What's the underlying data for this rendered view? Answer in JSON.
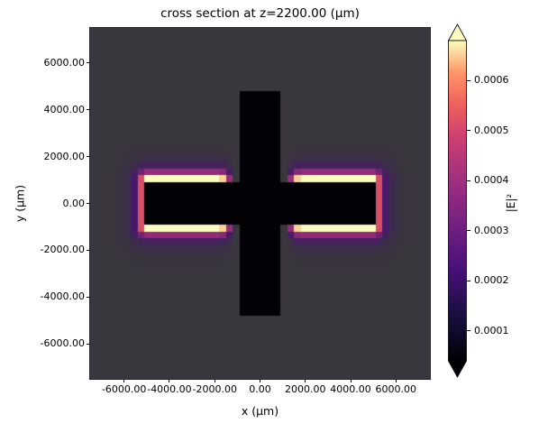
{
  "title": "cross section at z=2200.00 (μm)",
  "chart_data": {
    "type": "heatmap",
    "title": "cross section at z=2200.00 (μm)",
    "xlabel": "x (μm)",
    "ylabel": "y (μm)",
    "xlim": [
      -7500,
      7500
    ],
    "ylim": [
      -7500,
      7500
    ],
    "grid": false,
    "xticks": [
      {
        "v": -6000,
        "label": "-6000.00"
      },
      {
        "v": -4000,
        "label": "-4000.00"
      },
      {
        "v": -2000,
        "label": "-2000.00"
      },
      {
        "v": 0,
        "label": "0.00"
      },
      {
        "v": 2000,
        "label": "2000.00"
      },
      {
        "v": 4000,
        "label": "4000.00"
      },
      {
        "v": 6000,
        "label": "6000.00"
      }
    ],
    "yticks": [
      {
        "v": 6000,
        "label": "6000.00"
      },
      {
        "v": 4000,
        "label": "4000.00"
      },
      {
        "v": 2000,
        "label": "2000.00"
      },
      {
        "v": 0,
        "label": "0.00"
      },
      {
        "v": -2000,
        "label": "-2000.00"
      },
      {
        "v": -4000,
        "label": "-4000.00"
      },
      {
        "v": -6000,
        "label": "-6000.00"
      }
    ],
    "colormap": "magma",
    "background_value_color": "#39363d",
    "colorbar": {
      "label": "|E|²",
      "extend": "both",
      "range": [
        4e-05,
        0.00068
      ],
      "over_color": "#fcfdbf",
      "under_color": "#000004",
      "ticks": [
        {
          "v": 0.0001,
          "label": "0.0001"
        },
        {
          "v": 0.0002,
          "label": "0.0002"
        },
        {
          "v": 0.0003,
          "label": "0.0003"
        },
        {
          "v": 0.0004,
          "label": "0.0004"
        },
        {
          "v": 0.0005,
          "label": "0.0005"
        },
        {
          "v": 0.0006,
          "label": "0.0006"
        }
      ],
      "gradient": [
        [
          "0%",
          "#000004"
        ],
        [
          "14%",
          "#180f3e"
        ],
        [
          "28%",
          "#451077"
        ],
        [
          "42%",
          "#721f81"
        ],
        [
          "56%",
          "#9f2f7f"
        ],
        [
          "70%",
          "#cd4071"
        ],
        [
          "80%",
          "#f1605d"
        ],
        [
          "90%",
          "#fd9567"
        ],
        [
          "100%",
          "#fcfdbf"
        ]
      ]
    },
    "structure": {
      "description": "black cross-shaped mask (waveguide cross section); |E|² intensity concentrated in bright rims along the edges of the horizontal bar arms, decaying outward, suppressed near the vertical bar",
      "horizontal_bar_um": {
        "x": [
          -5000,
          5000
        ],
        "y": [
          -1000,
          1000
        ]
      },
      "vertical_bar_um": {
        "x": [
          -1000,
          1000
        ],
        "y": [
          -4700,
          4700
        ]
      }
    },
    "render": {
      "grid": 50,
      "edge_offset_um": 100,
      "decay_um": 280,
      "inner_suppress_start_um": 1100,
      "inner_suppress_width_um": 600,
      "mask_color": "#020105",
      "cmap_stops": [
        [
          0.0,
          "#39363d"
        ],
        [
          0.2,
          "#48196b"
        ],
        [
          0.45,
          "#a3307e"
        ],
        [
          0.65,
          "#f1605d"
        ],
        [
          0.82,
          "#fc9f67"
        ],
        [
          1.0,
          "#fbfcbf"
        ]
      ]
    }
  }
}
